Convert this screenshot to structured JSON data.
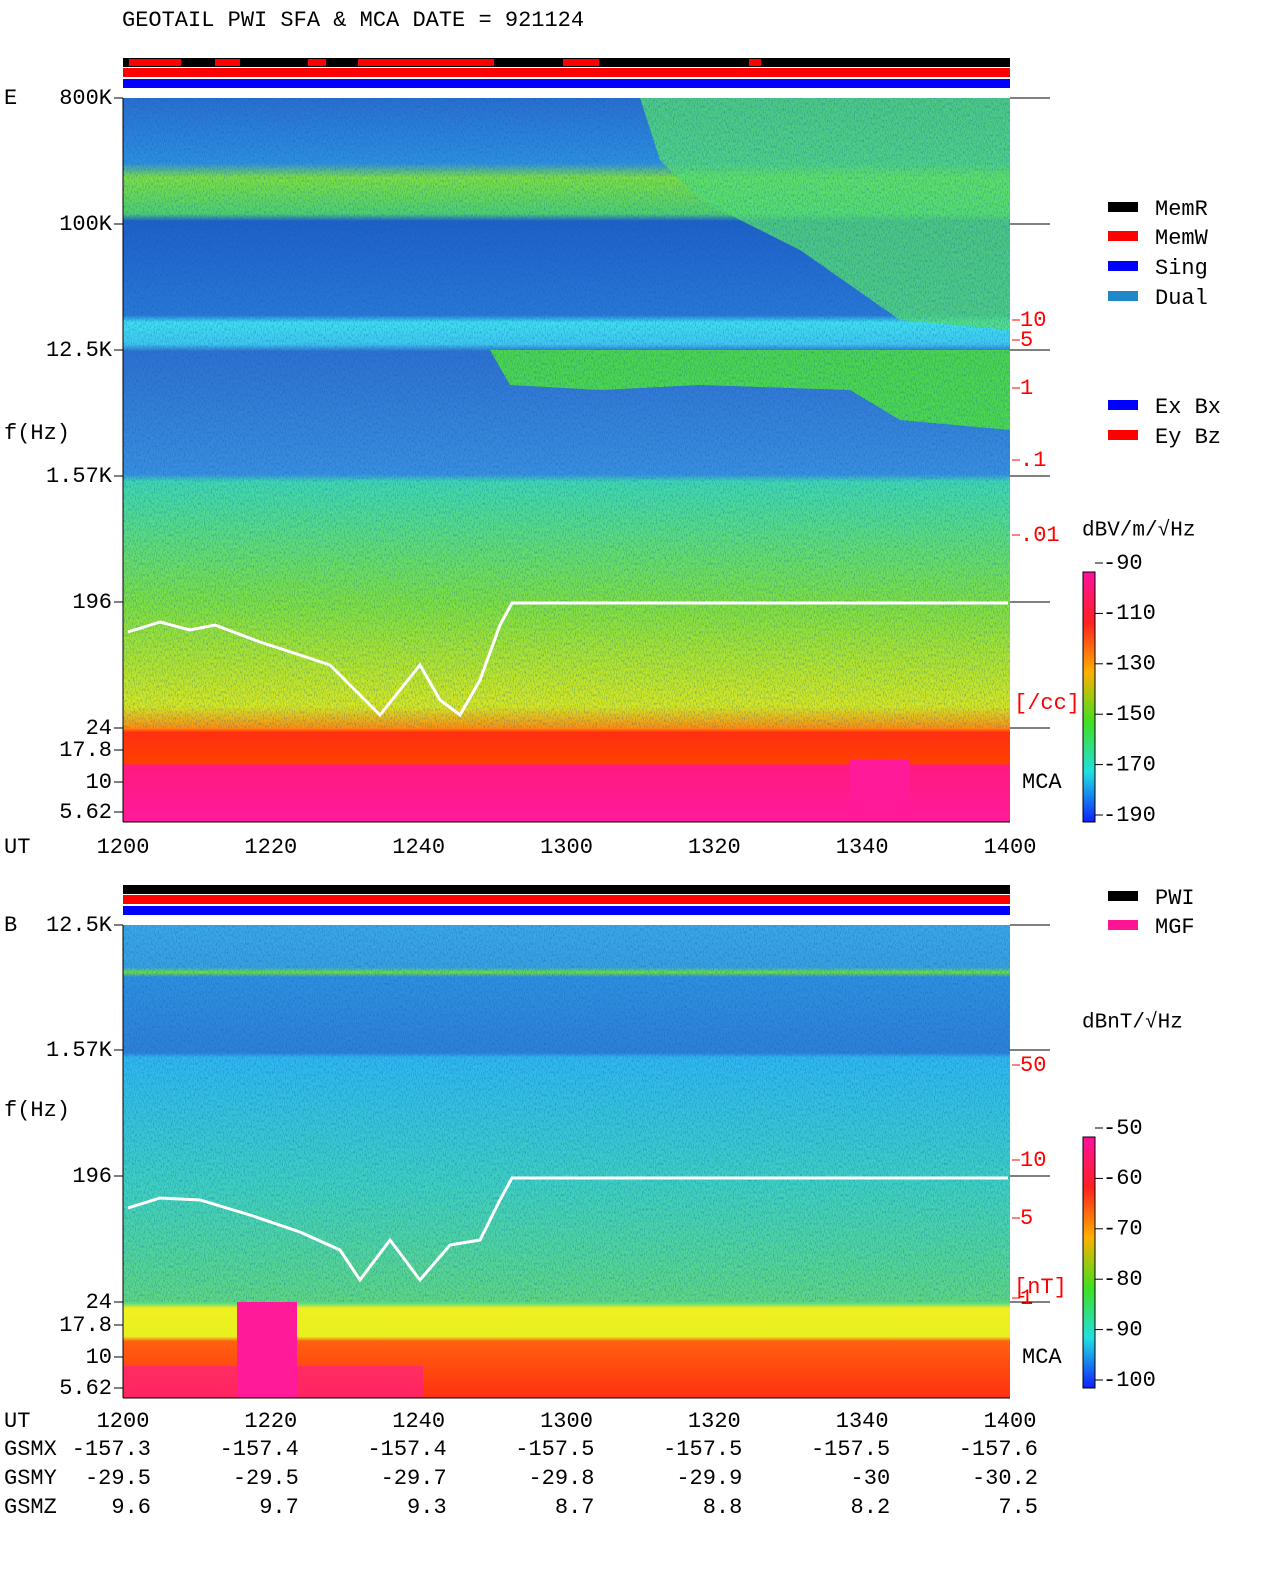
{
  "title": "GEOTAIL  PWI SFA & MCA   DATE = 921124",
  "panels": [
    {
      "label": "E",
      "ylabel": "f(Hz)",
      "yticks": [
        "800K",
        "100K",
        "12.5K",
        "1.57K",
        "196",
        "24",
        "17.8",
        "10",
        "5.62"
      ],
      "mca": "MCA",
      "xlabel": "UT",
      "xticks": [
        "1200",
        "1220",
        "1240",
        "1300",
        "1320",
        "1340",
        "1400"
      ],
      "colorbar_unit": "dBV/m/√Hz",
      "colorbar_ticks": [
        -90,
        -110,
        -130,
        -150,
        -170,
        -190
      ],
      "density_ticks": [
        "10",
        "5",
        "1",
        ".1",
        ".01"
      ],
      "density_unit": "[/cc]"
    },
    {
      "label": "B",
      "ylabel": "f(Hz)",
      "yticks": [
        "12.5K",
        "1.57K",
        "196",
        "24",
        "17.8",
        "10",
        "5.62"
      ],
      "mca": "MCA",
      "xlabel": "UT",
      "xticks": [
        "1200",
        "1220",
        "1240",
        "1300",
        "1320",
        "1340",
        "1400"
      ],
      "colorbar_unit": "dBnT/√Hz",
      "colorbar_ticks": [
        -50,
        -60,
        -70,
        -80,
        -90,
        -100
      ],
      "density_ticks": [
        "50",
        "10",
        "5",
        "1"
      ],
      "density_unit": "[nT]"
    }
  ],
  "legend_mode": [
    {
      "name": "MemR",
      "color": "#000000"
    },
    {
      "name": "MemW",
      "color": "#ff0000"
    },
    {
      "name": "Sing",
      "color": "#0000ff"
    },
    {
      "name": "Dual",
      "color": "#1e88c8"
    }
  ],
  "legend_antenna": [
    {
      "name": "Ex Bx",
      "color": "#0000ff"
    },
    {
      "name": "Ey Bz",
      "color": "#ff0000"
    }
  ],
  "legend_source": [
    {
      "name": "PWI",
      "color": "#000000"
    },
    {
      "name": "MGF",
      "color": "#ff1493"
    }
  ],
  "orbit": [
    {
      "label": "GSMX",
      "values": [
        -157.3,
        -157.4,
        -157.4,
        -157.5,
        -157.5,
        -157.5,
        -157.6
      ]
    },
    {
      "label": "GSMY",
      "values": [
        -29.5,
        -29.5,
        -29.7,
        -29.8,
        -29.9,
        -30.0,
        -30.2
      ]
    },
    {
      "label": "GSMZ",
      "values": [
        9.6,
        9.7,
        9.3,
        8.7,
        8.8,
        8.2,
        7.5
      ]
    }
  ]
}
